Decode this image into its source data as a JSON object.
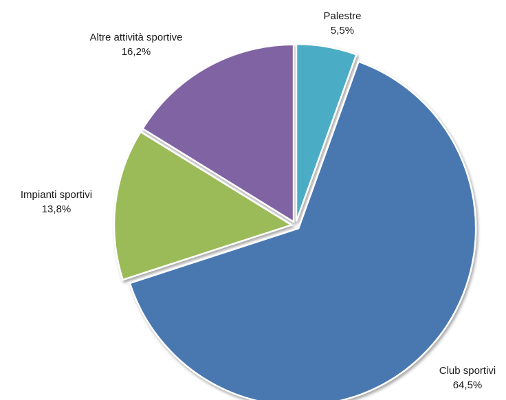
{
  "chart_data": {
    "type": "pie",
    "title": "",
    "slices": [
      {
        "label": "Palestre",
        "value": 5.5,
        "value_label": "5,5%",
        "color": "#4BACC6"
      },
      {
        "label": "Club sportivi",
        "value": 64.5,
        "value_label": "64,5%",
        "color": "#4A78B0"
      },
      {
        "label": "Impianti sportivi",
        "value": 13.8,
        "value_label": "13,8%",
        "color": "#9BBB59"
      },
      {
        "label": "Altre attività sportive",
        "value": 16.2,
        "value_label": "16,2%",
        "color": "#8064A2"
      }
    ],
    "start_angle_deg": 0,
    "direction": "clockwise",
    "exploded": true,
    "legend": "none",
    "data_labels": "outside"
  }
}
